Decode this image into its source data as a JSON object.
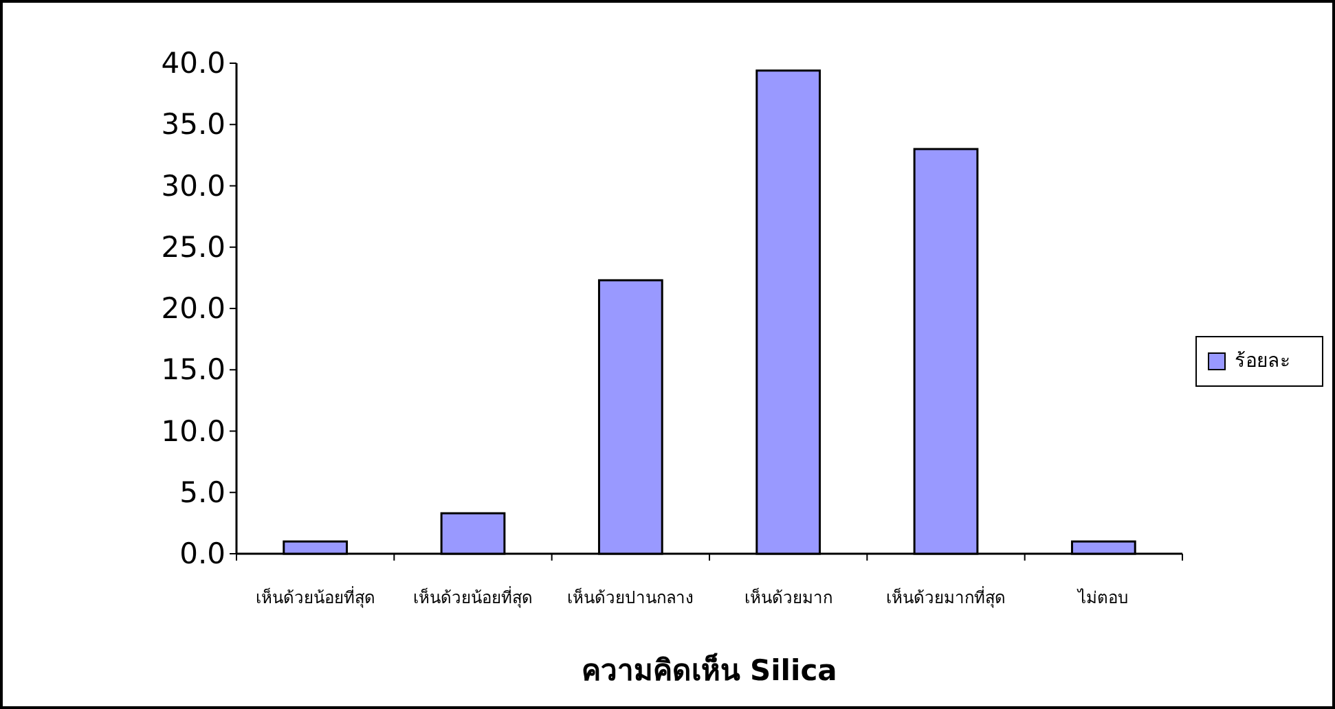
{
  "chart_data": {
    "type": "bar",
    "xlabel": "ความคิดเห็น Silica",
    "categories": [
      "เห็นด้วยน้อยที่สุด",
      "เห็นด้วยน้อยที่สุด",
      "เห็นด้วยปานกลาง",
      "เห็นด้วยมาก",
      "เห็นด้วยมากที่สุด",
      "ไม่ตอบ"
    ],
    "series": [
      {
        "name": "ร้อยละ",
        "color": "#9999ff",
        "values": [
          1.0,
          3.3,
          22.3,
          39.4,
          33.0,
          1.0
        ]
      }
    ],
    "ylim": [
      0,
      40
    ],
    "yticks": [
      {
        "value": 0,
        "label": "0.0"
      },
      {
        "value": 5,
        "label": "5.0"
      },
      {
        "value": 10,
        "label": "10.0"
      },
      {
        "value": 15,
        "label": "15.0"
      },
      {
        "value": 20,
        "label": "20.0"
      },
      {
        "value": 25,
        "label": "25.0"
      },
      {
        "value": 30,
        "label": "30.0"
      },
      {
        "value": 35,
        "label": "35.0"
      },
      {
        "value": 40,
        "label": "40.0"
      }
    ],
    "legend": "right"
  }
}
